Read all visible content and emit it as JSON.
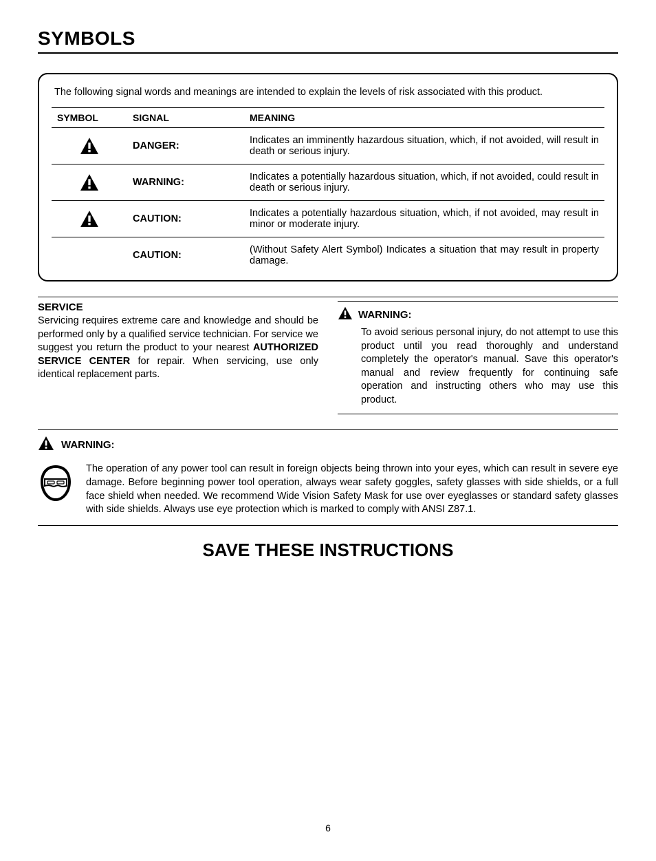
{
  "page": {
    "title": "SYMBOLS",
    "number": "6"
  },
  "signal_box": {
    "intro": "The following signal words and meanings are intended to explain the levels of risk associated with this product.",
    "headers": {
      "symbol": "SYMBOL",
      "signal": "SIGNAL",
      "meaning": "MEANING"
    },
    "rows": [
      {
        "has_icon": true,
        "signal": "DANGER:",
        "meaning": "Indicates an imminently hazardous situation, which, if not avoided, will result in death or serious injury."
      },
      {
        "has_icon": true,
        "signal": "WARNING:",
        "meaning": "Indicates a potentially hazardous situation, which, if not avoided, could result in death or serious injury."
      },
      {
        "has_icon": true,
        "signal": "CAUTION:",
        "meaning": "Indicates a potentially hazardous situation, which, if not avoided, may result in minor or moderate injury."
      },
      {
        "has_icon": false,
        "signal": "CAUTION:",
        "meaning": "(Without Safety Alert Symbol) Indicates a situation that may result in property damage."
      }
    ]
  },
  "service": {
    "heading": "SERVICE",
    "body_before": "Servicing requires extreme care and knowledge and should be performed only by a qualified service technician. For service we suggest you return the product to your nearest ",
    "bold": "AUTHORIZED SERVICE CENTER",
    "body_after": " for repair. When servicing, use only identical replacement parts."
  },
  "warning_right": {
    "heading": "WARNING:",
    "body": "To avoid serious personal injury, do not attempt to use this product until you read thoroughly and understand completely the operator's manual. Save this operator's manual and review frequently for continuing safe operation and instructing others who may use this product."
  },
  "warning_full": {
    "heading": "WARNING:",
    "body": "The operation of any power tool can result in foreign objects being thrown into your eyes, which can result in severe eye damage. Before beginning power tool operation, always wear safety goggles, safety glasses with side shields, or a full face shield when needed. We recommend Wide Vision Safety Mask for use over eyeglasses or standard safety glasses with side shields. Always use eye protection which is marked to comply with ANSI Z87.1."
  },
  "save_instructions": "SAVE THESE INSTRUCTIONS",
  "icons": {
    "alert": {
      "fill": "#000000",
      "bang_fill": "#ffffff"
    }
  }
}
